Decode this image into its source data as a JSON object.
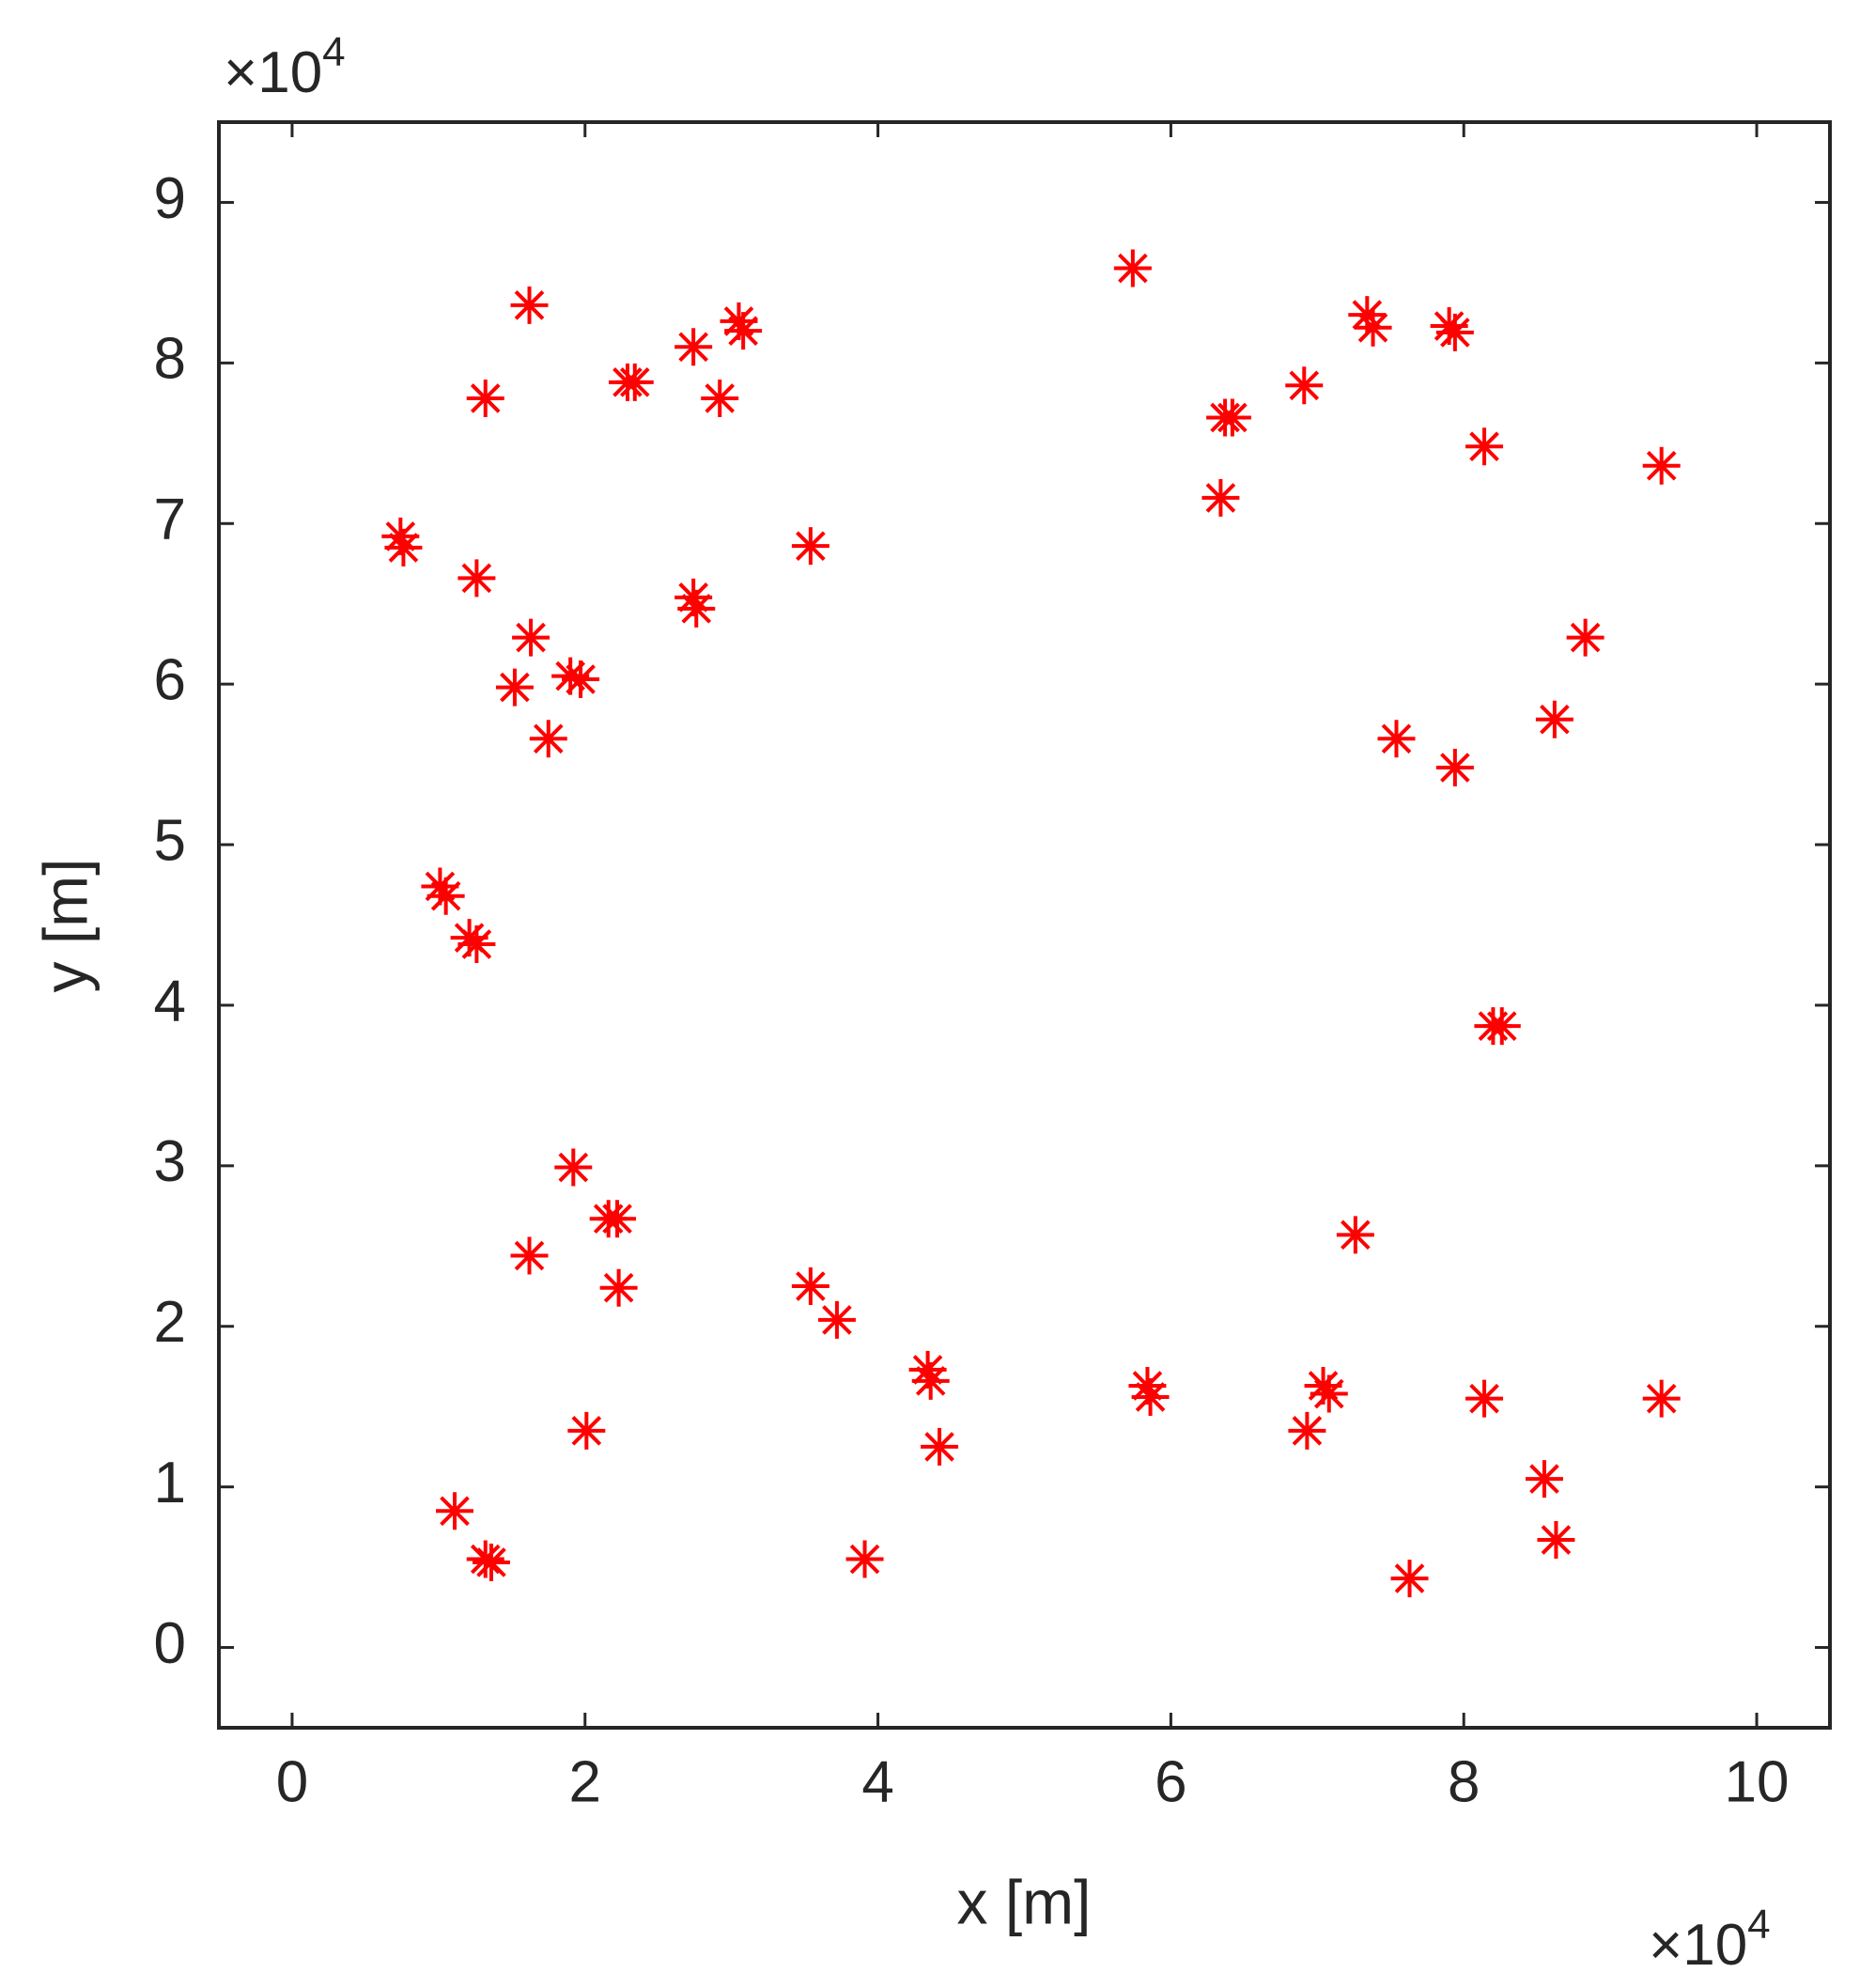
{
  "chart_data": {
    "type": "scatter",
    "xlabel": "x [m]",
    "ylabel": "y [m]",
    "x_scale_label": "×10",
    "x_scale_exponent": "4",
    "y_scale_label": "×10",
    "y_scale_exponent": "4",
    "xlim": [
      -0.5,
      10.5
    ],
    "ylim": [
      -0.5,
      9.5
    ],
    "xticks": [
      0,
      2,
      4,
      6,
      8,
      10
    ],
    "yticks": [
      0,
      1,
      2,
      3,
      4,
      5,
      6,
      7,
      8,
      9
    ],
    "marker": "asterisk",
    "color": "#ff0000",
    "x": [
      5.74,
      1.62,
      1.32,
      2.29,
      2.74,
      3.05,
      2.92,
      0.74,
      1.26,
      3.54,
      2.74,
      1.63,
      1.52,
      1.9,
      1.75,
      1.01,
      1.21,
      7.34,
      7.9,
      6.91,
      6.37,
      6.34,
      8.14,
      9.35,
      8.83,
      8.62,
      7.54,
      7.94,
      8.2,
      1.92,
      2.16,
      1.62,
      2.23,
      3.54,
      3.72,
      4.34,
      4.42,
      5.84,
      7.04,
      6.93,
      7.26,
      8.14,
      9.35,
      8.55,
      8.63,
      7.63,
      3.91,
      2.01,
      1.11,
      1.32,
      2.34,
      3.08,
      0.76,
      2.76,
      1.97,
      1.05,
      1.26,
      7.38,
      7.94,
      6.42,
      8.26,
      2.22,
      4.36,
      5.86,
      7.08,
      1.36
    ],
    "values": [
      8.59,
      8.36,
      7.78,
      7.88,
      8.1,
      8.26,
      7.78,
      6.92,
      6.66,
      6.86,
      6.54,
      6.29,
      5.98,
      6.05,
      5.66,
      4.74,
      4.42,
      8.3,
      8.23,
      7.86,
      7.66,
      7.16,
      7.48,
      7.36,
      6.29,
      5.78,
      5.66,
      5.48,
      3.87,
      2.99,
      2.67,
      2.44,
      2.24,
      2.25,
      2.04,
      1.73,
      1.25,
      1.63,
      1.63,
      1.35,
      2.57,
      1.55,
      1.55,
      1.05,
      0.67,
      0.43,
      0.55,
      1.35,
      0.85,
      0.55,
      7.88,
      8.2,
      6.85,
      6.47,
      6.03,
      4.68,
      4.38,
      8.22,
      8.19,
      7.66,
      3.87,
      2.67,
      1.66,
      1.56,
      1.58,
      0.53
    ]
  }
}
